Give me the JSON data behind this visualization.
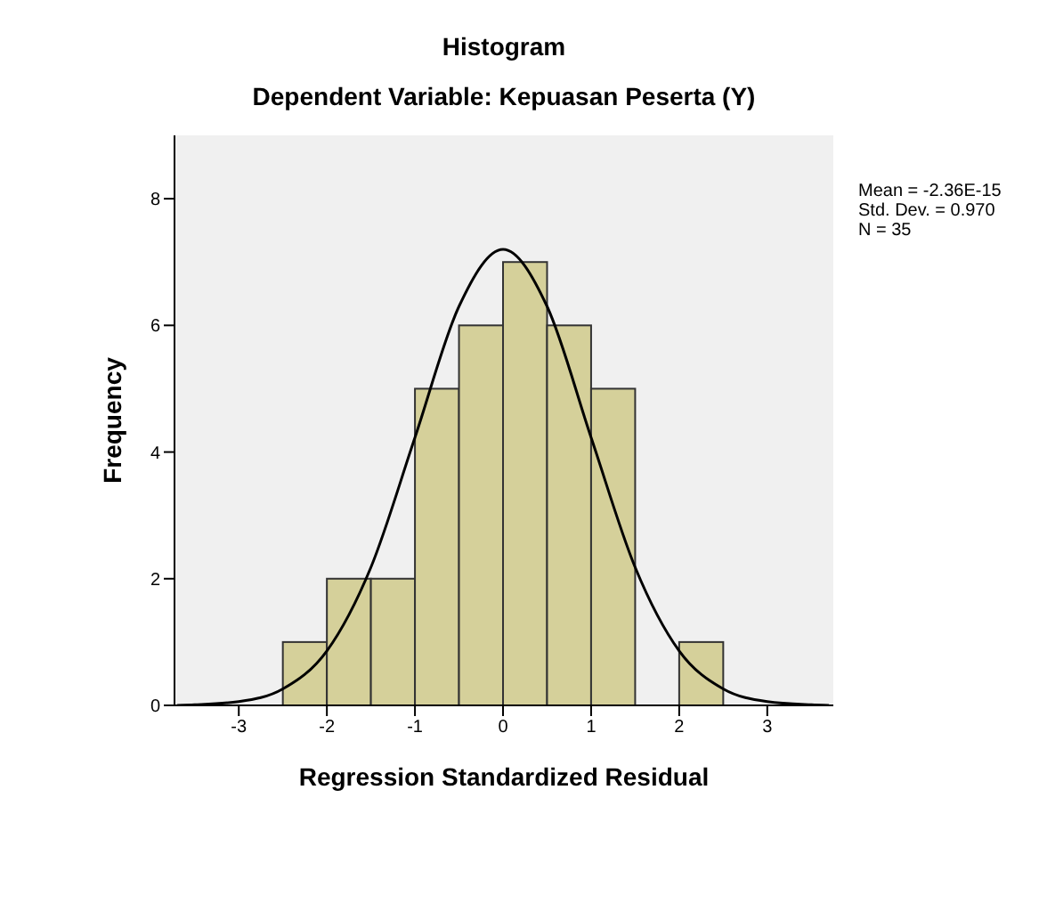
{
  "chart_data": {
    "type": "histogram",
    "title": "Histogram",
    "subtitle": "Dependent Variable: Kepuasan Peserta (Y)",
    "xlabel": "Regression Standardized Residual",
    "ylabel": "Frequency",
    "bins": [
      -2.5,
      -2,
      -1.5,
      -1,
      -0.5,
      0,
      0.5,
      1,
      1.5,
      2,
      2.5
    ],
    "values": [
      1,
      2,
      2,
      5,
      6,
      7,
      6,
      5,
      0,
      1
    ],
    "color": "#d5d09a",
    "series": [
      {
        "type": "line",
        "color": "#000000",
        "x": [
          -3.7,
          -3.5,
          -3,
          -2.5,
          -2,
          -1.5,
          -1,
          -0.5,
          0,
          0.5,
          1,
          1.5,
          2,
          2.5,
          3,
          3.5,
          3.7
        ],
        "values": [
          0,
          0.01,
          0.06,
          0.26,
          0.86,
          2.18,
          4.23,
          6.3,
          7.2,
          6.3,
          4.23,
          2.18,
          0.86,
          0.26,
          0.06,
          0.01,
          0
        ]
      }
    ],
    "xlim": [
      -3.73,
      3.75
    ],
    "xticks": [
      -3,
      -2,
      -1,
      0,
      1,
      2,
      3
    ],
    "ylim": [
      0,
      9
    ],
    "yticks": [
      0,
      2,
      4,
      6,
      8
    ],
    "grid": false,
    "legend": false,
    "marker": "none",
    "annotations": [
      "Mean = -2.36E-15",
      "Std. Dev. = 0.970",
      "N = 35"
    ]
  }
}
